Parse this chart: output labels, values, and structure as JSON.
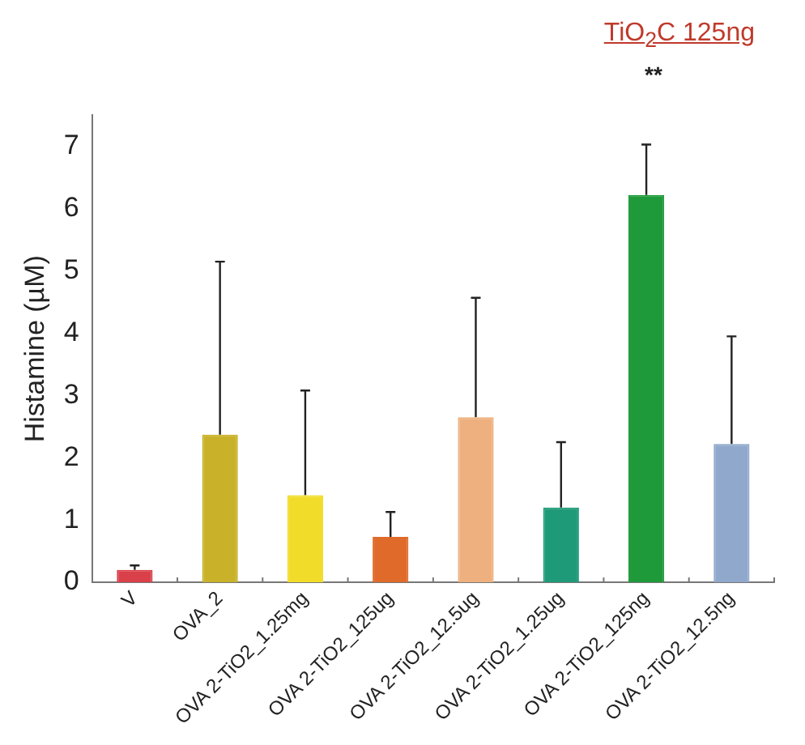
{
  "chart_data": {
    "type": "bar",
    "ylabel": "Histamine (µM)",
    "categories": [
      "V",
      "OVA_2",
      "OVA 2-TiO2_1.25mg",
      "OVA 2-TiO2_125ug",
      "OVA 2-TiO2_12.5ug",
      "OVA 2-TiO2_1.25ug",
      "OVA 2-TiO2_125ng",
      "OVA 2-TiO2_12.5ng"
    ],
    "values": [
      0.2,
      2.37,
      1.4,
      0.73,
      2.65,
      1.2,
      6.22,
      2.22
    ],
    "colors": [
      "#d9404a",
      "#c9b22a",
      "#f2dc2a",
      "#e06a2a",
      "#eeb07e",
      "#1f9a78",
      "#1f9a3a",
      "#8fa8cc"
    ],
    "errors": [
      [
        0.2,
        0.27
      ],
      [
        2.37,
        5.15
      ],
      [
        1.4,
        3.08
      ],
      [
        0.73,
        1.13
      ],
      [
        2.65,
        4.57
      ],
      [
        1.2,
        2.25
      ],
      [
        6.22,
        7.03
      ],
      [
        2.22,
        3.95
      ]
    ],
    "ylim": [
      0,
      7.5
    ],
    "yticks": [
      0,
      1,
      2,
      3,
      4,
      5,
      6,
      7
    ],
    "grid": false,
    "annotations": [
      "TiO$_{2}$C 125ng",
      "**"
    ]
  }
}
